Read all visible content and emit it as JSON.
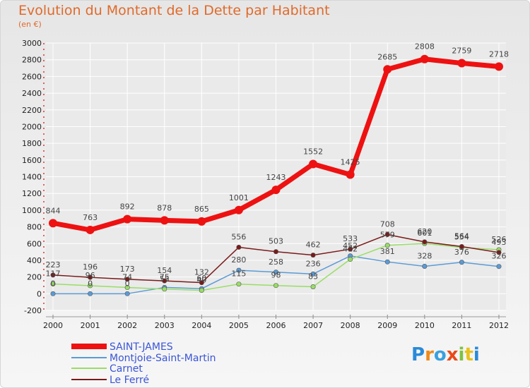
{
  "title": "Evolution du Montant de la Dette par Habitant",
  "subtitle": "(en €)",
  "logo_text": "Proxiti",
  "chart_data": {
    "type": "line",
    "x": [
      "2000",
      "2001",
      "2002",
      "2003",
      "2004",
      "2005",
      "2006",
      "2007",
      "2008",
      "2009",
      "2010",
      "2011",
      "2012"
    ],
    "ylim": [
      -200,
      3000
    ],
    "yticks": [
      -200,
      0,
      200,
      400,
      600,
      800,
      1000,
      1200,
      1400,
      1600,
      1800,
      2000,
      2200,
      2400,
      2600,
      2800,
      3000
    ],
    "grid": true,
    "legend_position": "bottom-left",
    "series": [
      {
        "name": "SAINT-JAMES",
        "color": "#ee1111",
        "values": [
          844,
          763,
          892,
          878,
          865,
          1001,
          1243,
          1552,
          1425,
          2685,
          2808,
          2759,
          2718
        ]
      },
      {
        "name": "Montjoie-Saint-Martin",
        "color": "#5b9bd5",
        "values": [
          0,
          0,
          0,
          75,
          60,
          280,
          258,
          236,
          452,
          381,
          328,
          376,
          326
        ]
      },
      {
        "name": "Carnet",
        "color": "#99dd66",
        "values": [
          117,
          96,
          74,
          55,
          40,
          115,
          98,
          83,
          412,
          579,
          601,
          554,
          526
        ]
      },
      {
        "name": "Le Ferré",
        "color": "#7a1a1a",
        "values": [
          223,
          196,
          173,
          154,
          132,
          556,
          503,
          462,
          533,
          708,
          620,
          564,
          493
        ]
      }
    ]
  }
}
